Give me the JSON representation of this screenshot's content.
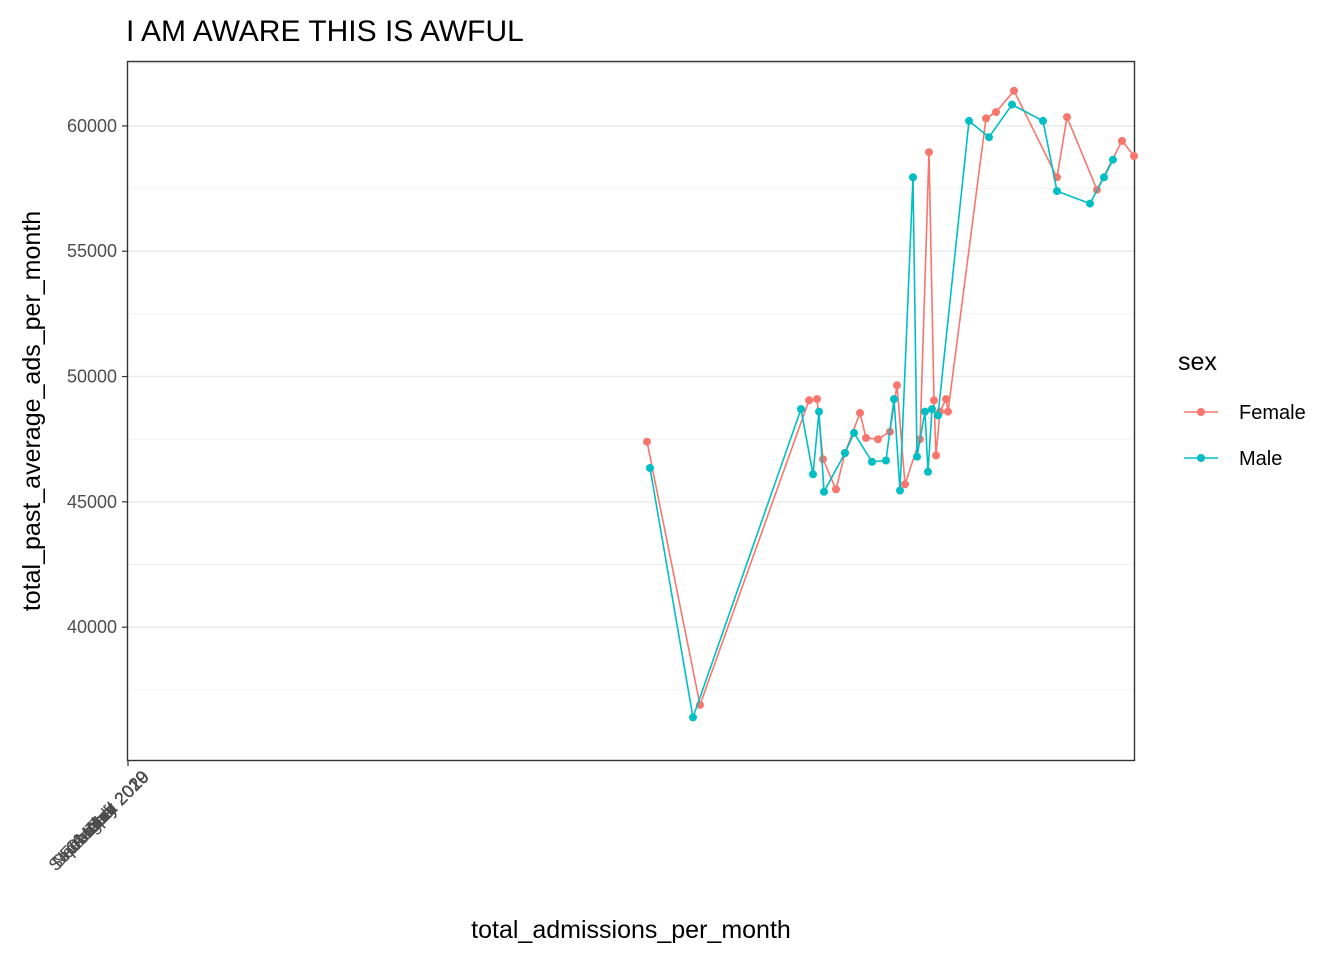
{
  "chart_data": {
    "type": "line",
    "title": "I AM AWARE THIS IS AWFUL",
    "xlabel": "total_admissions_per_month",
    "ylabel": "total_past_average_ads_per_month",
    "ylim": [
      34700,
      62550
    ],
    "y_ticks": [
      "40000",
      "45000",
      "50000",
      "55000",
      "60000"
    ],
    "y_tick_values": [
      40000,
      45000,
      50000,
      55000,
      60000
    ],
    "x_tick_labels": [
      "September 2019",
      "October 2019",
      "November 2019",
      "December 2019",
      "January 2020",
      "February 2020",
      "March 2020",
      "April 2020",
      "May 2020",
      "June 2020",
      "July 2020",
      "August 2020"
    ],
    "grid": true,
    "legend": {
      "title": "sex",
      "position": "right",
      "entries": [
        "Female",
        "Male"
      ]
    },
    "series": [
      {
        "name": "Female",
        "color": "#F8766D",
        "points": [
          [
            647,
            47400
          ],
          [
            700,
            36900
          ],
          [
            809,
            49050
          ],
          [
            817,
            49100
          ],
          [
            823,
            46700
          ],
          [
            836,
            45500
          ],
          [
            845,
            46950
          ],
          [
            860,
            48550
          ],
          [
            866,
            47550
          ],
          [
            878,
            47500
          ],
          [
            890,
            47800
          ],
          [
            897,
            49650
          ],
          [
            905,
            45700
          ],
          [
            920,
            47500
          ],
          [
            929,
            58950
          ],
          [
            934,
            49050
          ],
          [
            936,
            46850
          ],
          [
            940,
            48600
          ],
          [
            946,
            49100
          ],
          [
            948,
            48600
          ],
          [
            986,
            60300
          ],
          [
            996,
            60550
          ],
          [
            1014,
            61400
          ],
          [
            1057,
            57950
          ],
          [
            1067,
            60350
          ],
          [
            1097,
            57450
          ],
          [
            1122,
            59400
          ],
          [
            1134,
            58800
          ]
        ]
      },
      {
        "name": "Male",
        "color": "#00BFC4",
        "points": [
          [
            650,
            46350
          ],
          [
            693,
            36400
          ],
          [
            801,
            48700
          ],
          [
            813,
            46100
          ],
          [
            819,
            48600
          ],
          [
            824,
            45400
          ],
          [
            845,
            46950
          ],
          [
            854,
            47750
          ],
          [
            872,
            46600
          ],
          [
            886,
            46650
          ],
          [
            894,
            49100
          ],
          [
            900,
            45450
          ],
          [
            913,
            57950
          ],
          [
            917,
            46800
          ],
          [
            925,
            48600
          ],
          [
            928,
            46200
          ],
          [
            932,
            48700
          ],
          [
            938,
            48450
          ],
          [
            969,
            60200
          ],
          [
            989,
            59550
          ],
          [
            1012,
            60850
          ],
          [
            1043,
            60200
          ],
          [
            1057,
            57400
          ],
          [
            1090,
            56900
          ],
          [
            1104,
            57950
          ],
          [
            1113,
            58650
          ]
        ]
      }
    ]
  }
}
